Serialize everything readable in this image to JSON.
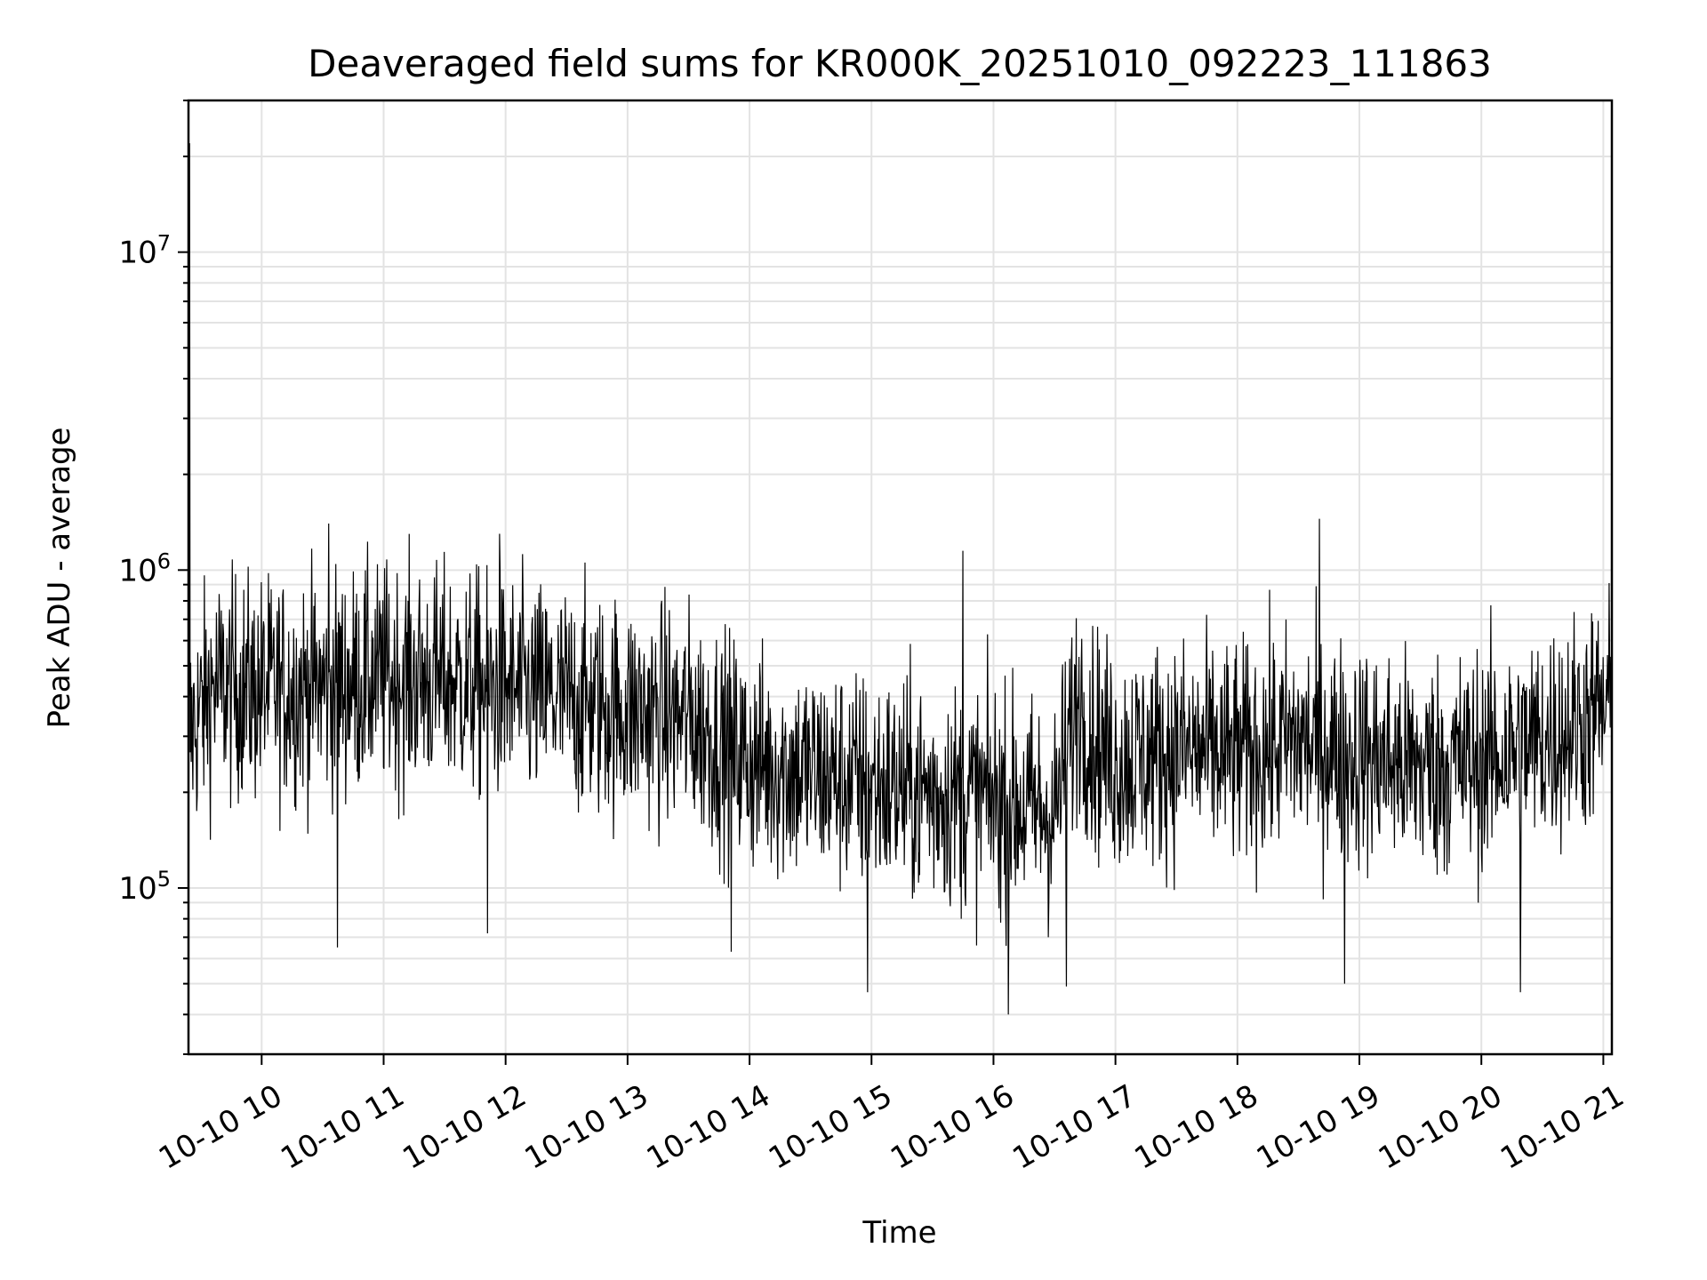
{
  "chart_data": {
    "type": "line",
    "title": "Deaveraged field sums for KR000K_20251010_092223_111863",
    "xlabel": "Time",
    "ylabel": "Peak ADU - average",
    "yscale": "log",
    "ylim": [
      30000,
      30000000
    ],
    "xlim_hours": [
      9.4,
      21.07
    ],
    "grid": true,
    "x_ticks": [
      {
        "value": 10,
        "label": "10-10 10"
      },
      {
        "value": 11,
        "label": "10-10 11"
      },
      {
        "value": 12,
        "label": "10-10 12"
      },
      {
        "value": 13,
        "label": "10-10 13"
      },
      {
        "value": 14,
        "label": "10-10 14"
      },
      {
        "value": 15,
        "label": "10-10 15"
      },
      {
        "value": 16,
        "label": "10-10 16"
      },
      {
        "value": 17,
        "label": "10-10 17"
      },
      {
        "value": 18,
        "label": "10-10 18"
      },
      {
        "value": 19,
        "label": "10-10 19"
      },
      {
        "value": 20,
        "label": "10-10 20"
      },
      {
        "value": 21,
        "label": "10-10 21"
      }
    ],
    "y_ticks": [
      {
        "value": 100000,
        "base": "10",
        "exp": "5"
      },
      {
        "value": 1000000,
        "base": "10",
        "exp": "6"
      },
      {
        "value": 10000000,
        "base": "10",
        "exp": "7"
      }
    ],
    "series": [
      {
        "name": "deaveraged field sum",
        "color": "#000000",
        "profile_hours": [
          9.4,
          9.6,
          10.0,
          10.5,
          11.0,
          11.5,
          12.0,
          12.5,
          13.0,
          13.5,
          14.0,
          14.5,
          15.0,
          15.5,
          16.0,
          16.5,
          16.7,
          16.8,
          17.0,
          17.5,
          18.0,
          18.5,
          19.0,
          19.5,
          20.0,
          20.5,
          21.0,
          21.07
        ],
        "profile_median": [
          300000,
          430000,
          420000,
          430000,
          460000,
          450000,
          420000,
          390000,
          360000,
          340000,
          250000,
          230000,
          210000,
          200000,
          190000,
          170000,
          400000,
          300000,
          250000,
          270000,
          260000,
          290000,
          260000,
          240000,
          250000,
          290000,
          360000,
          380000
        ],
        "spikes": [
          {
            "x": 9.41,
            "y": 22000000
          },
          {
            "x": 10.55,
            "y": 1400000
          },
          {
            "x": 11.95,
            "y": 1300000
          },
          {
            "x": 15.75,
            "y": 1150000
          },
          {
            "x": 18.67,
            "y": 1450000
          },
          {
            "x": 16.12,
            "y": 40000
          },
          {
            "x": 14.97,
            "y": 47000
          },
          {
            "x": 18.88,
            "y": 50000
          },
          {
            "x": 20.32,
            "y": 47000
          },
          {
            "x": 16.6,
            "y": 49000
          },
          {
            "x": 10.62,
            "y": 65000
          },
          {
            "x": 11.85,
            "y": 72000
          },
          {
            "x": 13.85,
            "y": 63000
          }
        ],
        "noise_spread_decades": 0.32,
        "sample_count": 2600
      }
    ]
  }
}
